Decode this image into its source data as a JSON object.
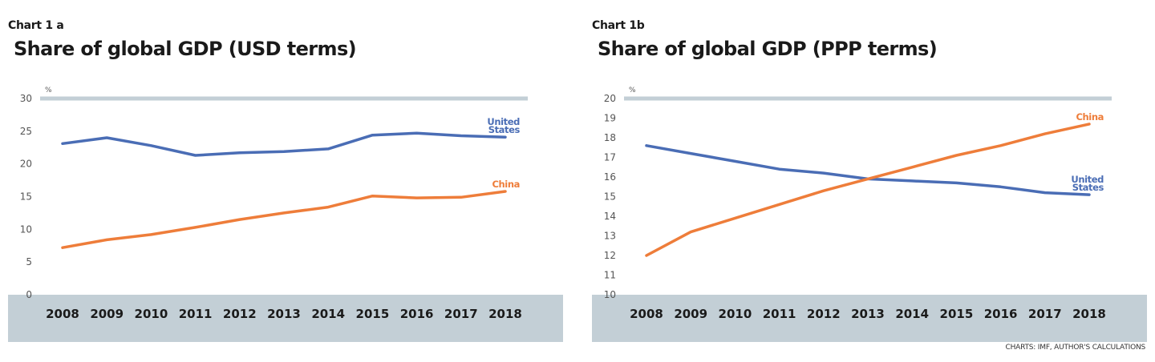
{
  "colors": {
    "united_states": "#4a6db5",
    "china": "#ee7d3a",
    "band": "#c3cfd6",
    "axis_text": "#555555",
    "year_text": "#1a1a1a"
  },
  "source": "CHARTS: IMF, AUTHOR'S CALCULATIONS",
  "chart_data": [
    {
      "type": "line",
      "label": "Chart 1 a",
      "title": "Share of global GDP (USD terms)",
      "unit": "%",
      "categories": [
        "2008",
        "2009",
        "2010",
        "2011",
        "2012",
        "2013",
        "2014",
        "2015",
        "2016",
        "2017",
        "2018"
      ],
      "ylim": [
        0,
        30
      ],
      "yticks": [
        0,
        5,
        10,
        15,
        20,
        25,
        30
      ],
      "series": [
        {
          "name": "United States",
          "label_lines": [
            "United",
            "States"
          ],
          "color_key": "united_states",
          "values": [
            23.1,
            24.0,
            22.8,
            21.3,
            21.7,
            21.9,
            22.3,
            24.4,
            24.7,
            24.3,
            24.1
          ]
        },
        {
          "name": "China",
          "label_lines": [
            "China"
          ],
          "color_key": "china",
          "values": [
            7.2,
            8.4,
            9.2,
            10.3,
            11.5,
            12.5,
            13.4,
            15.1,
            14.8,
            14.9,
            15.8
          ]
        }
      ]
    },
    {
      "type": "line",
      "label": "Chart 1b",
      "title": "Share of global GDP (PPP terms)",
      "unit": "%",
      "categories": [
        "2008",
        "2009",
        "2010",
        "2011",
        "2012",
        "2013",
        "2014",
        "2015",
        "2016",
        "2017",
        "2018"
      ],
      "ylim": [
        10,
        20
      ],
      "yticks": [
        10,
        11,
        12,
        13,
        14,
        15,
        16,
        17,
        18,
        19,
        20
      ],
      "series": [
        {
          "name": "United States",
          "label_lines": [
            "United",
            "States"
          ],
          "color_key": "united_states",
          "values": [
            17.6,
            17.2,
            16.8,
            16.4,
            16.2,
            15.9,
            15.8,
            15.7,
            15.5,
            15.2,
            15.1
          ]
        },
        {
          "name": "China",
          "label_lines": [
            "China"
          ],
          "color_key": "china",
          "values": [
            12.0,
            13.2,
            13.9,
            14.6,
            15.3,
            15.9,
            16.5,
            17.1,
            17.6,
            18.2,
            18.7
          ]
        }
      ]
    }
  ]
}
